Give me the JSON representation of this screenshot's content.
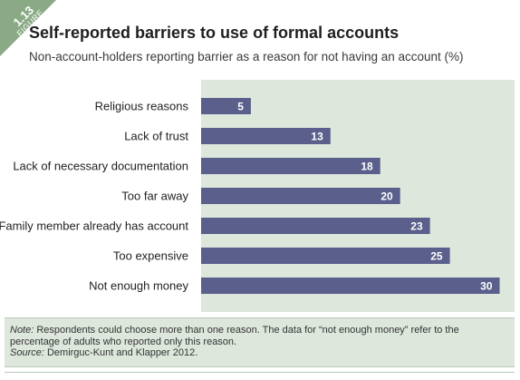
{
  "figure": {
    "number": "1.13",
    "word": "FIGURE",
    "accent_color": "#8aaa86"
  },
  "title": "Self-reported barriers to use of formal accounts",
  "subtitle": "Non-account-holders reporting barrier as a reason for not having an account (%)",
  "chart_data": {
    "type": "bar",
    "orientation": "horizontal",
    "categories": [
      "Religious reasons",
      "Lack of trust",
      "Lack of necessary documentation",
      "Too far away",
      "Family member already has account",
      "Too expensive",
      "Not enough money"
    ],
    "values": [
      5,
      13,
      18,
      20,
      23,
      25,
      30
    ],
    "xlim": [
      0,
      31.5
    ],
    "bar_color": "#5a5f8c",
    "plot_background": "#dde7dc",
    "data_labels": true,
    "grid": false
  },
  "note": {
    "note_label": "Note:",
    "note_text": " Respondents could choose more than one reason. The data for “not enough money” refer to the percentage of adults who reported only this reason.",
    "source_label": "Source:",
    "source_text": " Demirguc-Kunt and Klapper 2012."
  }
}
